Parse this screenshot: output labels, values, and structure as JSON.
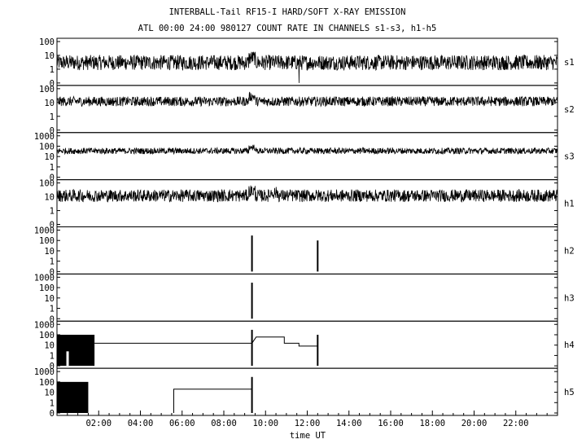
{
  "header": {
    "title": "INTERBALL-Tail RF15-I HARD/SOFT X-RAY EMISSION",
    "subtitle": "ATL 00:00 24:00 980127  COUNT RATE IN CHANNELS s1-s3, h1-h5"
  },
  "chart_data": {
    "type": "line",
    "xlabel": "time UT",
    "xlim": [
      0,
      24
    ],
    "x_ticks": [
      "02:00",
      "04:00",
      "06:00",
      "08:00",
      "10:00",
      "12:00",
      "14:00",
      "16:00",
      "18:00",
      "20:00",
      "22:00"
    ],
    "y_scale": "log",
    "grid": false,
    "panels": [
      {
        "name": "s1",
        "yticks": [
          "100",
          "10",
          "1",
          "0"
        ],
        "ymax": 100,
        "baseline": 3,
        "noise": 0.55
      },
      {
        "name": "s2",
        "yticks": [
          "100",
          "10",
          "1",
          "0"
        ],
        "ymax": 100,
        "baseline": 12,
        "noise": 0.35
      },
      {
        "name": "s3",
        "yticks": [
          "1000",
          "100",
          "10",
          "1",
          "0"
        ],
        "ymax": 1000,
        "baseline": 35,
        "noise": 0.3
      },
      {
        "name": "h1",
        "yticks": [
          "100",
          "10",
          "1",
          "0"
        ],
        "ymax": 100,
        "baseline": 12,
        "noise": 0.45
      },
      {
        "name": "h2",
        "yticks": [
          "1000",
          "100",
          "10",
          "1",
          "0"
        ],
        "ymax": 1000,
        "baseline": 0,
        "spikes": [
          [
            9.35,
            300
          ],
          [
            12.5,
            100
          ]
        ]
      },
      {
        "name": "h3",
        "yticks": [
          "1000",
          "100",
          "10",
          "1",
          "0"
        ],
        "ymax": 1000,
        "baseline": 0,
        "spikes": [
          [
            9.35,
            300
          ]
        ]
      },
      {
        "name": "h4",
        "yticks": [
          "1000",
          "100",
          "10",
          "1",
          "0"
        ],
        "ymax": 1000,
        "baseline": 0,
        "block": [
          0,
          1.8,
          100
        ],
        "steps": [
          [
            1.8,
            15
          ],
          [
            9.35,
            15
          ],
          [
            9.55,
            60
          ],
          [
            10.2,
            60
          ],
          [
            10.3,
            60
          ],
          [
            10.9,
            60
          ],
          [
            10.9,
            15
          ],
          [
            11.6,
            15
          ],
          [
            11.6,
            8
          ],
          [
            12.5,
            8
          ]
        ],
        "spikes": [
          [
            9.35,
            300
          ],
          [
            12.5,
            100
          ]
        ]
      },
      {
        "name": "h5",
        "yticks": [
          "1000",
          "100",
          "10",
          "1",
          "0"
        ],
        "ymax": 1000,
        "baseline": 0,
        "block": [
          0,
          1.5,
          100
        ],
        "steps": [
          [
            5.6,
            0
          ],
          [
            5.6,
            20
          ],
          [
            9.35,
            20
          ]
        ],
        "spikes": [
          [
            9.35,
            300
          ]
        ]
      }
    ]
  }
}
